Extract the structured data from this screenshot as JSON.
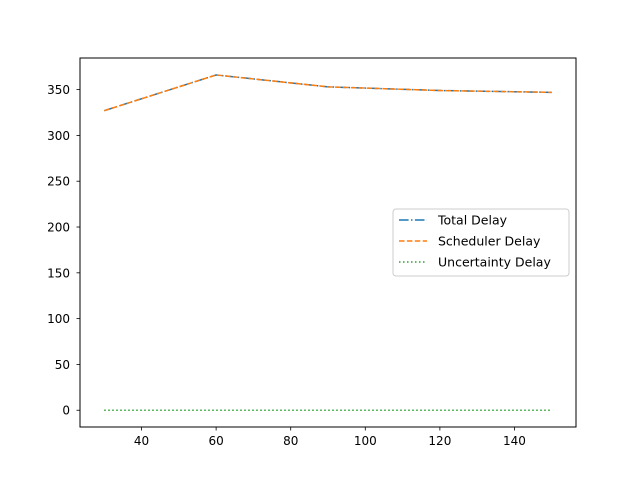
{
  "chart_data": {
    "type": "line",
    "title": "",
    "xlabel": "",
    "ylabel": "",
    "xlim": [
      23.5,
      156.5
    ],
    "ylim": [
      -18.3,
      384.5
    ],
    "xticks": [
      40,
      60,
      80,
      100,
      120,
      140
    ],
    "yticks": [
      0,
      50,
      100,
      150,
      200,
      250,
      300,
      350
    ],
    "grid": false,
    "legend_position": "center-right",
    "series": [
      {
        "name": "Total Delay",
        "x": [
          30,
          60,
          90,
          120,
          150
        ],
        "values": [
          327,
          366,
          353,
          349,
          347
        ],
        "color": "#1f77b4",
        "dash": "dashdot"
      },
      {
        "name": "Scheduler Delay",
        "x": [
          30,
          60,
          90,
          120,
          150
        ],
        "values": [
          327,
          366,
          353,
          349,
          347
        ],
        "color": "#ff7f0e",
        "dash": "dashed"
      },
      {
        "name": "Uncertainty Delay",
        "x": [
          30,
          60,
          90,
          120,
          150
        ],
        "values": [
          0,
          0,
          0,
          0,
          0
        ],
        "color": "#2ca02c",
        "dash": "dotted"
      }
    ]
  }
}
